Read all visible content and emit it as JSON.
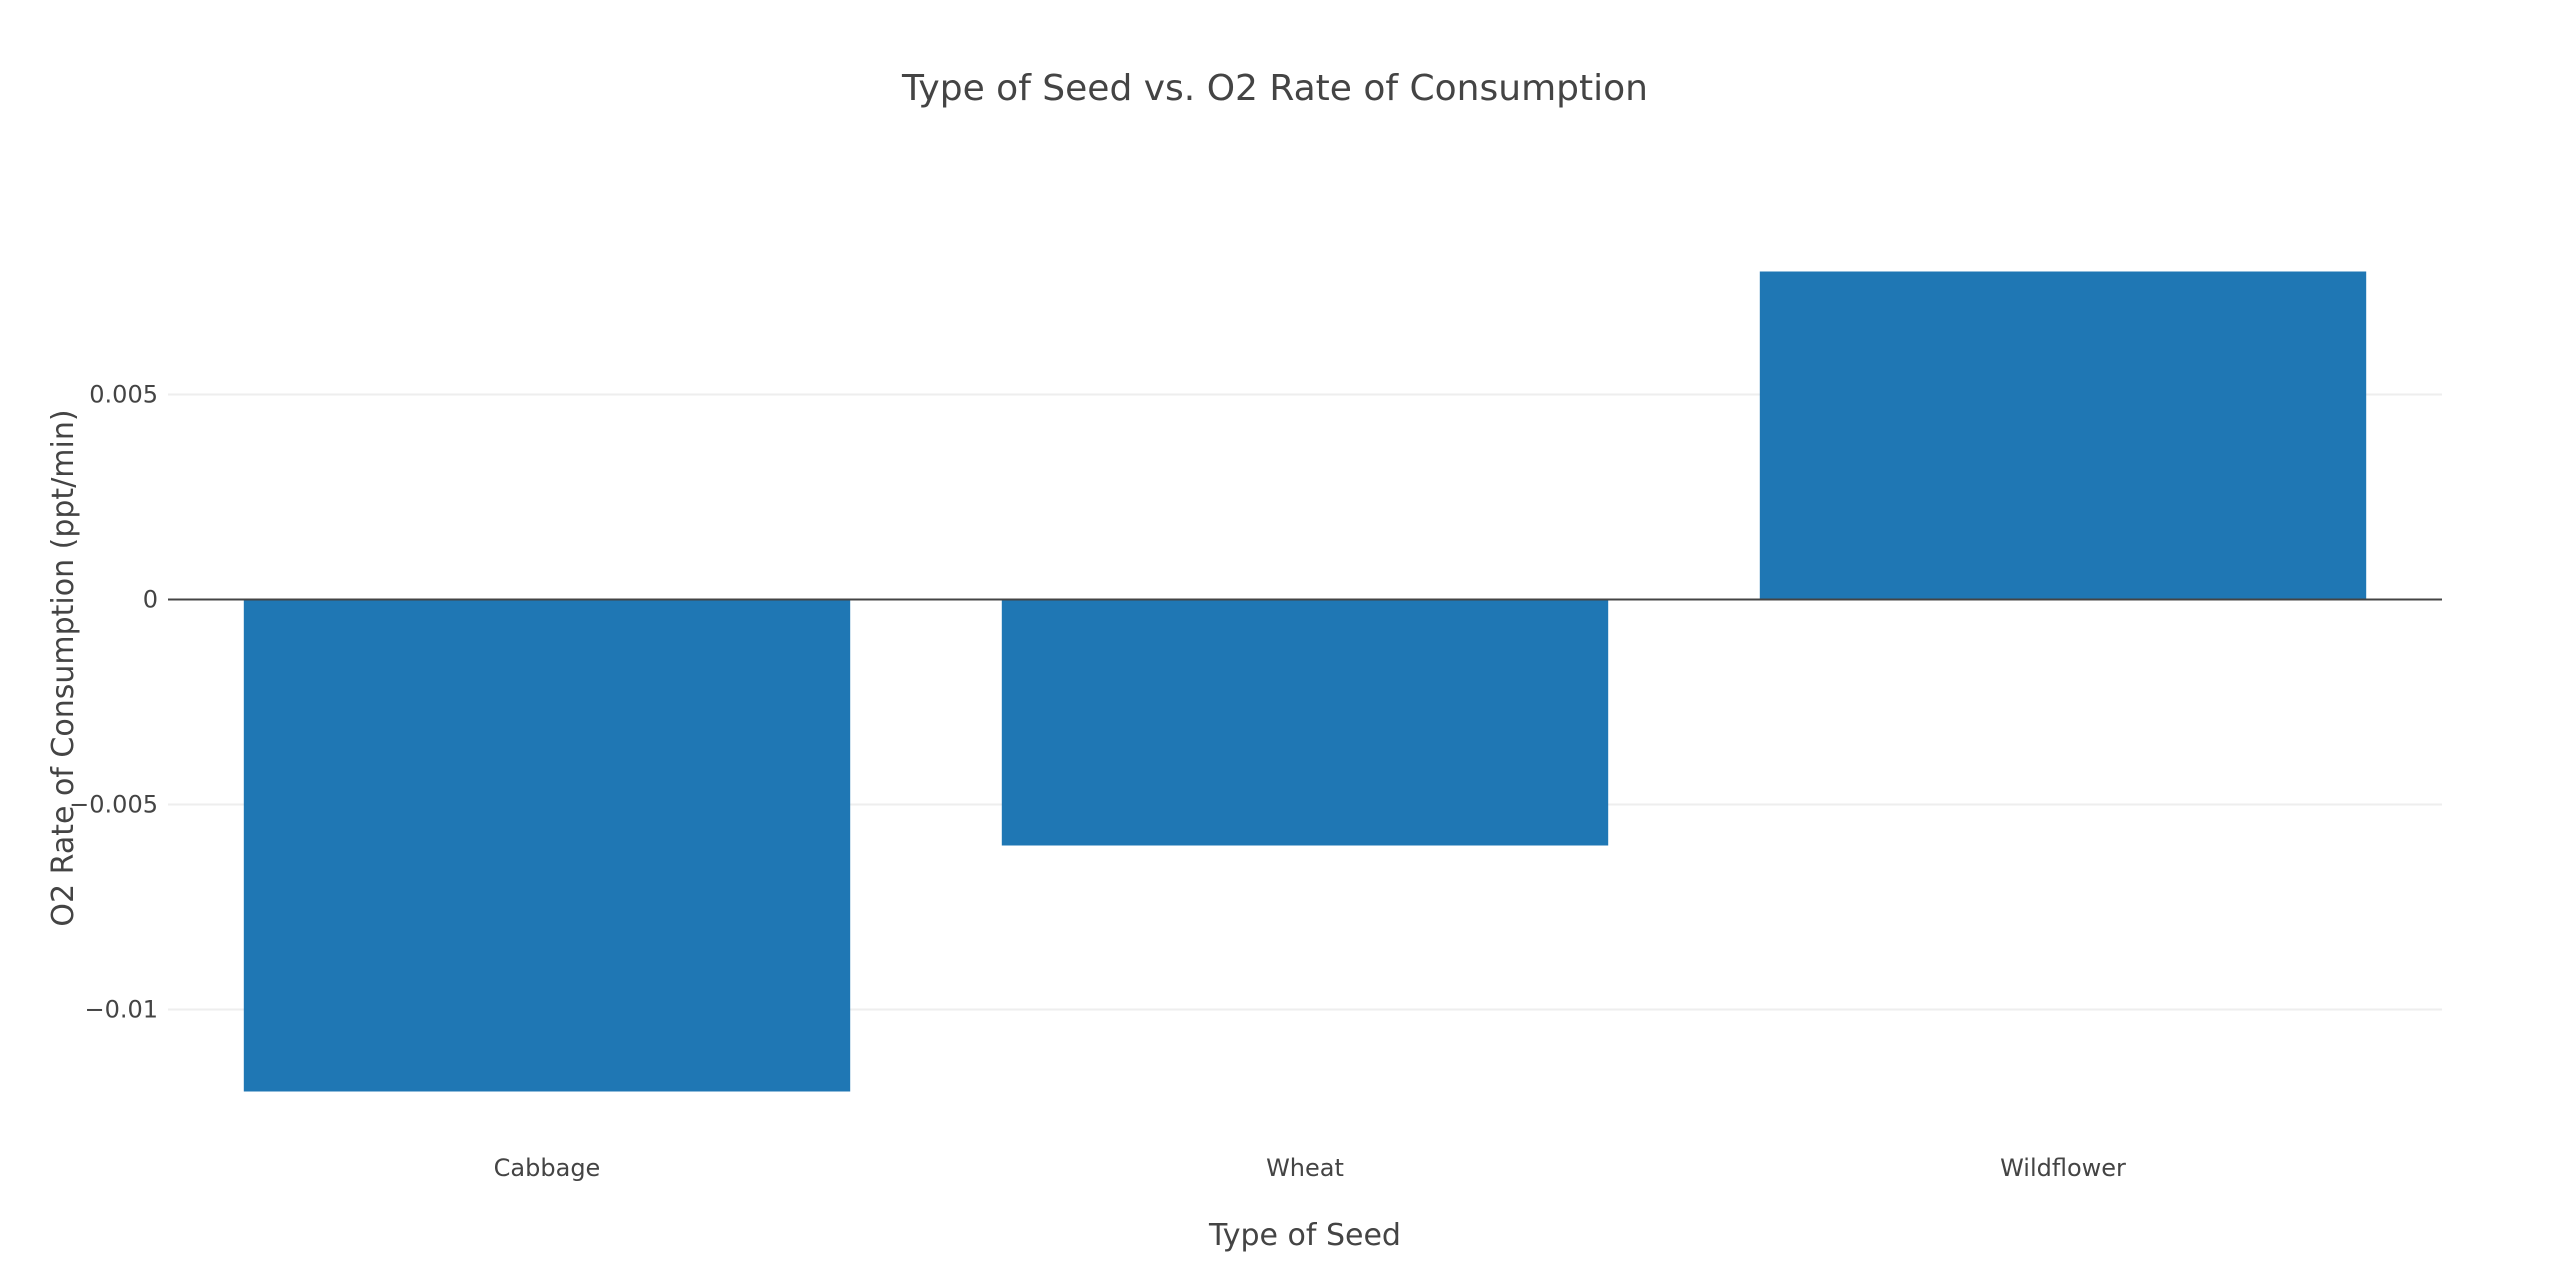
{
  "chart_data": {
    "type": "bar",
    "title": "Type of Seed vs. O2 Rate of Consumption",
    "xlabel": "Type of Seed",
    "ylabel": "O2 Rate of Consumption (ppt/min)",
    "categories": [
      "Cabbage",
      "Wheat",
      "Wildflower"
    ],
    "values": [
      -0.012,
      -0.006,
      0.008
    ],
    "ylim": [
      -0.0125,
      0.0095
    ],
    "yticks": [
      {
        "value": 0.005,
        "label": "0.005"
      },
      {
        "value": 0,
        "label": "0"
      },
      {
        "value": -0.005,
        "label": "−0.005"
      },
      {
        "value": -0.01,
        "label": "−0.01"
      }
    ],
    "grid": true,
    "legend": "none",
    "bar_color": "#1f77b4"
  }
}
